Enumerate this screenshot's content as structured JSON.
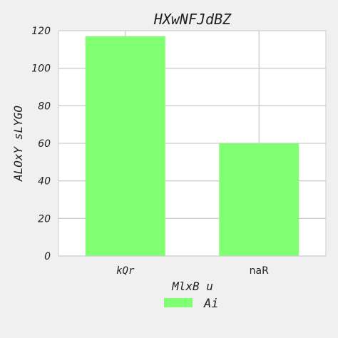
{
  "chart_data": {
    "type": "bar",
    "title": "HXwNFJdBZ",
    "xlabel": "MlxB u",
    "ylabel": "ALOxY sLYGO",
    "categories": [
      "kQr",
      "naR"
    ],
    "series": [
      {
        "name": "Ai",
        "values": [
          117,
          60
        ],
        "color": "#80ff72"
      }
    ],
    "ylim": [
      0,
      120
    ],
    "yticks": [
      0,
      20,
      40,
      60,
      80,
      100,
      120
    ],
    "grid": true,
    "legend": "bottom-center",
    "colors": {
      "background": "#f0f0f0",
      "plot_background": "#ffffff",
      "grid": "#cccccc",
      "text": "#222222"
    }
  }
}
